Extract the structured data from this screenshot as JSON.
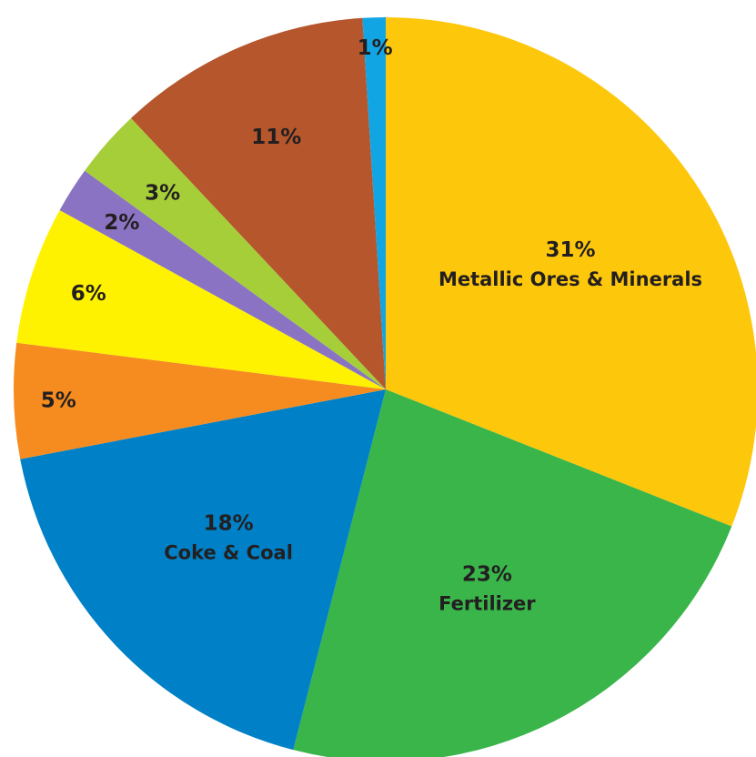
{
  "chart_data": {
    "type": "pie",
    "title": "",
    "slices": [
      {
        "label": "Metallic Ores & Minerals",
        "pct_label": "31%",
        "value": 31,
        "color": "#fdc70c"
      },
      {
        "label": "Fertilizer",
        "pct_label": "23%",
        "value": 23,
        "color": "#39b54a"
      },
      {
        "label": "Coke & Coal",
        "pct_label": "18%",
        "value": 18,
        "color": "#0080c6"
      },
      {
        "label": "",
        "pct_label": "5%",
        "value": 5,
        "color": "#f68b1f"
      },
      {
        "label": "",
        "pct_label": "6%",
        "value": 6,
        "color": "#fff200"
      },
      {
        "label": "",
        "pct_label": "2%",
        "value": 2,
        "color": "#8a73c3"
      },
      {
        "label": "",
        "pct_label": "3%",
        "value": 3,
        "color": "#a6ce39"
      },
      {
        "label": "",
        "pct_label": "11%",
        "value": 11,
        "color": "#b5562d"
      },
      {
        "label": "",
        "pct_label": "1%",
        "value": 1,
        "color": "#12a5e3"
      }
    ]
  }
}
